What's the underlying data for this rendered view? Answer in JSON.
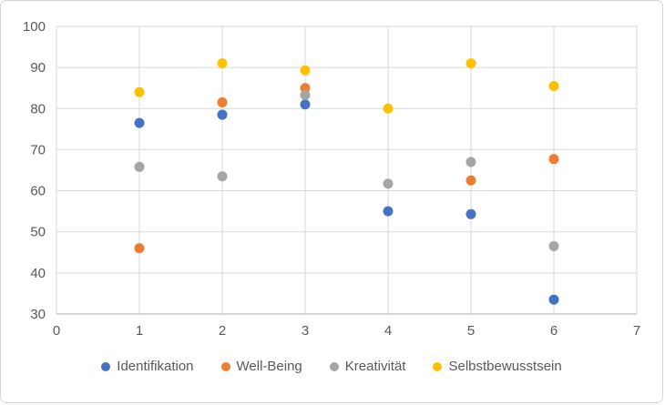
{
  "chart_data": {
    "type": "scatter",
    "title": "",
    "xlabel": "",
    "ylabel": "",
    "x": [
      1,
      2,
      3,
      4,
      5,
      6
    ],
    "series": [
      {
        "name": "Identifikation",
        "color": "#4472C4",
        "values": [
          76.5,
          78.5,
          81,
          55,
          54.3,
          33.5
        ]
      },
      {
        "name": "Well-Being",
        "color": "#ED7D31",
        "values": [
          46,
          81.5,
          85,
          null,
          62.5,
          67.7
        ]
      },
      {
        "name": "Kreativität",
        "color": "#A5A5A5",
        "values": [
          65.8,
          63.5,
          83.3,
          61.7,
          67,
          46.5
        ]
      },
      {
        "name": "Selbstbewusstsein",
        "color": "#FFC000",
        "values": [
          84,
          91,
          89.3,
          80,
          91,
          85.5
        ]
      }
    ],
    "xlim": [
      0,
      7
    ],
    "ylim": [
      30,
      100
    ],
    "xticks": [
      "0",
      "1",
      "2",
      "3",
      "4",
      "5",
      "6",
      "7"
    ],
    "yticks": [
      "30",
      "40",
      "50",
      "60",
      "70",
      "80",
      "90",
      "100"
    ],
    "grid": true,
    "legend_position": "bottom",
    "marker_diameter_px": 11,
    "colors": {
      "gridline": "#D9D9D9",
      "plot_border": "#D9D9D9",
      "axis_line": "#BFBFBF",
      "tick_label": "#595959",
      "frame_border": "#D5D5D5",
      "background": "#FFFFFF"
    }
  }
}
